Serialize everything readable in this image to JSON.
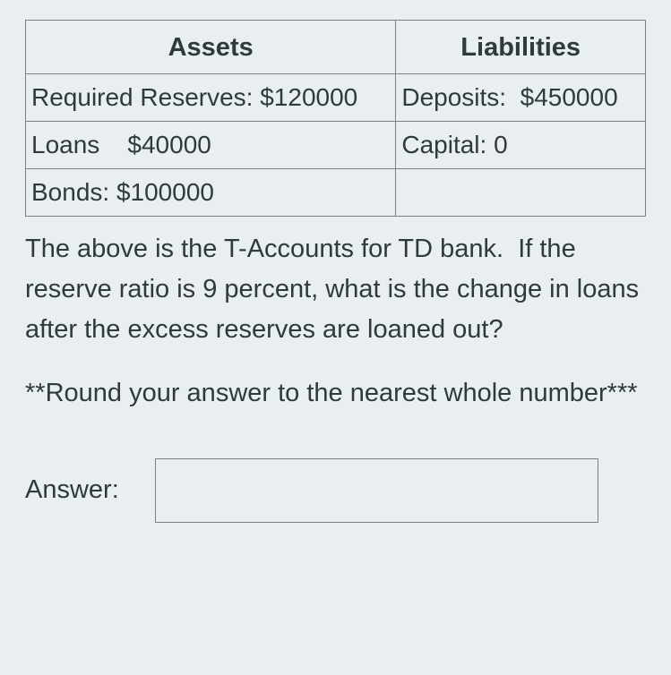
{
  "table": {
    "headers": {
      "assets": "Assets",
      "liabilities": "Liabilities"
    },
    "rows": [
      {
        "asset": "Required Reserves: $120000",
        "liability": "Deposits:  $450000"
      },
      {
        "asset": "Loans    $40000",
        "liability": "Capital: 0"
      },
      {
        "asset": "Bonds: $100000",
        "liability": ""
      }
    ]
  },
  "question": "The above is the T-Accounts for TD bank.  If the reserve ratio is 9 percent, what is the change in loans after the excess reserves are loaned out?",
  "note": "**Round your answer to the nearest whole number***",
  "answer_label": "Answer:",
  "answer_value": ""
}
